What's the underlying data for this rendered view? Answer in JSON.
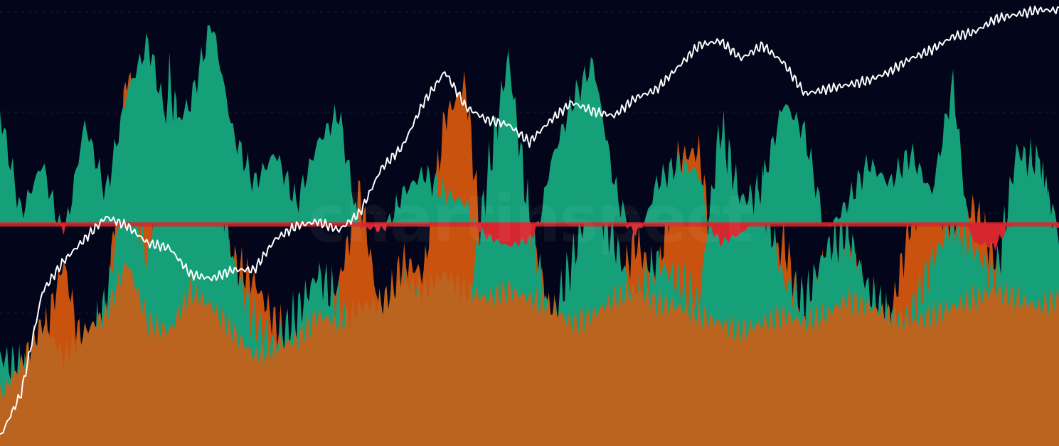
{
  "watermark": "chartinspect",
  "colors": {
    "background": "#03061a",
    "gridline": "#1a1e33",
    "area_base": "#bb6420",
    "area_peak": "#c9520f",
    "area_green": "#16a07a",
    "osc_positive": "#16a07a",
    "osc_negative": "#d6262e",
    "price_line": "#ffffff"
  },
  "chart_data": {
    "type": "area",
    "title": "",
    "xlabel": "",
    "ylabel": "",
    "grid": true,
    "legend": "none",
    "x": [
      0,
      0.02,
      0.04,
      0.06,
      0.08,
      0.1,
      0.12,
      0.14,
      0.16,
      0.18,
      0.2,
      0.22,
      0.24,
      0.26,
      0.28,
      0.3,
      0.32,
      0.34,
      0.36,
      0.38,
      0.4,
      0.42,
      0.44,
      0.46,
      0.48,
      0.5,
      0.52,
      0.54,
      0.56,
      0.58,
      0.6,
      0.62,
      0.64,
      0.66,
      0.68,
      0.7,
      0.72,
      0.74,
      0.76,
      0.78,
      0.8,
      0.82,
      0.84,
      0.86,
      0.88,
      0.9,
      0.92,
      0.94,
      0.96,
      0.98,
      1
    ],
    "series": [
      {
        "role": "price_line",
        "values": [
          0.02,
          0.12,
          0.35,
          0.42,
          0.47,
          0.52,
          0.5,
          0.46,
          0.45,
          0.39,
          0.38,
          0.4,
          0.4,
          0.47,
          0.5,
          0.51,
          0.49,
          0.53,
          0.63,
          0.68,
          0.78,
          0.85,
          0.77,
          0.74,
          0.73,
          0.69,
          0.74,
          0.78,
          0.76,
          0.75,
          0.79,
          0.81,
          0.86,
          0.91,
          0.92,
          0.88,
          0.91,
          0.87,
          0.8,
          0.81,
          0.82,
          0.83,
          0.85,
          0.88,
          0.9,
          0.93,
          0.94,
          0.97,
          0.98,
          0.99,
          0.99
        ]
      },
      {
        "role": "oscillator",
        "values": [
          0.55,
          0.05,
          0.3,
          -0.1,
          0.5,
          0.15,
          0.65,
          0.9,
          0.45,
          0.6,
          1.0,
          0.45,
          0.2,
          0.35,
          0.1,
          0.4,
          0.55,
          -0.05,
          -0.1,
          0.15,
          0.25,
          0.15,
          0.1,
          -0.2,
          -0.35,
          -0.25,
          0.3,
          0.6,
          0.8,
          0.2,
          -0.15,
          0.2,
          0.3,
          0.25,
          -0.3,
          -0.15,
          0.2,
          0.6,
          0.45,
          -0.05,
          0.1,
          0.3,
          0.2,
          0.35,
          0.15,
          0.7,
          -0.3,
          -0.35,
          0.15,
          0.3,
          -0.05
        ]
      },
      {
        "role": "area_base",
        "values": [
          0.12,
          0.2,
          0.3,
          0.22,
          0.28,
          0.32,
          0.45,
          0.3,
          0.28,
          0.38,
          0.34,
          0.28,
          0.22,
          0.24,
          0.26,
          0.32,
          0.3,
          0.34,
          0.35,
          0.4,
          0.38,
          0.42,
          0.38,
          0.36,
          0.38,
          0.36,
          0.34,
          0.3,
          0.32,
          0.36,
          0.38,
          0.35,
          0.34,
          0.32,
          0.3,
          0.28,
          0.3,
          0.32,
          0.3,
          0.32,
          0.36,
          0.34,
          0.32,
          0.3,
          0.32,
          0.34,
          0.36,
          0.38,
          0.36,
          0.34,
          0.36
        ]
      },
      {
        "role": "area_peaks",
        "values": [
          0.1,
          0.15,
          0.25,
          0.45,
          0.2,
          0.3,
          0.92,
          0.6,
          0.3,
          0.5,
          0.55,
          0.45,
          0.4,
          0.3,
          0.25,
          0.28,
          0.4,
          0.62,
          0.3,
          0.45,
          0.42,
          0.8,
          0.88,
          0.35,
          0.6,
          0.55,
          0.3,
          0.4,
          0.45,
          0.35,
          0.5,
          0.4,
          0.7,
          0.72,
          0.35,
          0.3,
          0.4,
          0.5,
          0.3,
          0.45,
          0.5,
          0.35,
          0.3,
          0.55,
          0.6,
          0.55,
          0.58,
          0.45,
          0.4,
          0.5,
          0.45
        ]
      },
      {
        "role": "area_green",
        "values": [
          0.22,
          0.18,
          0.12,
          0.15,
          0.2,
          0.35,
          0.65,
          0.45,
          0.9,
          0.6,
          0.75,
          0.45,
          0.3,
          0.25,
          0.32,
          0.42,
          0.35,
          0.2,
          0.28,
          0.38,
          0.3,
          0.25,
          0.3,
          0.65,
          0.95,
          0.55,
          0.3,
          0.45,
          0.62,
          0.5,
          0.35,
          0.45,
          0.4,
          0.35,
          0.78,
          0.6,
          0.62,
          0.4,
          0.35,
          0.48,
          0.52,
          0.38,
          0.3,
          0.32,
          0.45,
          0.55,
          0.48,
          0.4,
          0.72,
          0.68,
          0.5
        ]
      }
    ]
  }
}
